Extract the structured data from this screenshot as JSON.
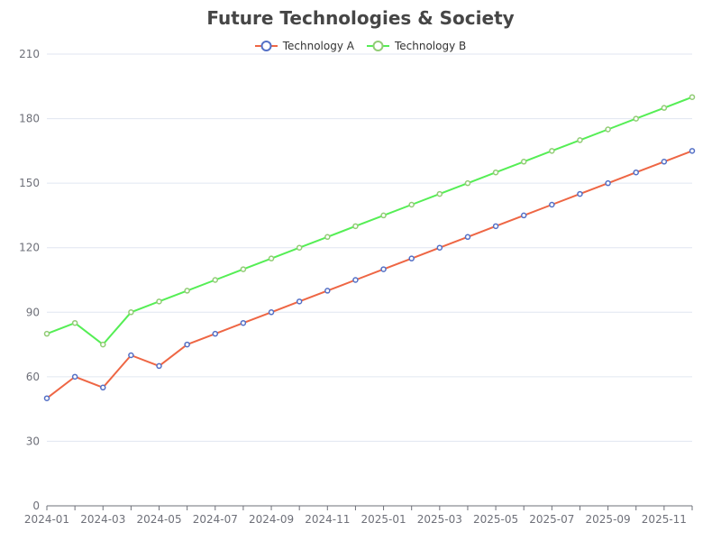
{
  "chart_data": {
    "type": "line",
    "title": "Future Technologies & Society",
    "xlabel": "",
    "ylabel": "",
    "ylim": [
      0,
      210
    ],
    "y_ticks": [
      0,
      30,
      60,
      90,
      120,
      150,
      180,
      210
    ],
    "x": [
      "2024-01",
      "2024-02",
      "2024-03",
      "2024-04",
      "2024-05",
      "2024-06",
      "2024-07",
      "2024-08",
      "2024-09",
      "2024-10",
      "2024-11",
      "2024-12",
      "2025-01",
      "2025-02",
      "2025-03",
      "2025-04",
      "2025-05",
      "2025-06",
      "2025-07",
      "2025-08",
      "2025-09",
      "2025-10",
      "2025-11",
      "2025-12"
    ],
    "x_tick_labels": [
      "2024-01",
      "2024-03",
      "2024-05",
      "2024-07",
      "2024-09",
      "2024-11",
      "2025-01",
      "2025-03",
      "2025-05",
      "2025-07",
      "2025-09",
      "2025-11"
    ],
    "grid": true,
    "legend": "top-center",
    "series": [
      {
        "name": "Technology A",
        "color": "#ee6644",
        "marker_color": "#5470c6",
        "values": [
          50,
          60,
          55,
          70,
          65,
          75,
          80,
          85,
          90,
          95,
          100,
          105,
          110,
          115,
          120,
          125,
          130,
          135,
          140,
          145,
          150,
          155,
          160,
          165
        ]
      },
      {
        "name": "Technology B",
        "color": "#55ee55",
        "marker_color": "#91cc75",
        "values": [
          80,
          85,
          75,
          90,
          95,
          100,
          105,
          110,
          115,
          120,
          125,
          130,
          135,
          140,
          145,
          150,
          155,
          160,
          165,
          170,
          175,
          180,
          185,
          190
        ]
      }
    ]
  }
}
